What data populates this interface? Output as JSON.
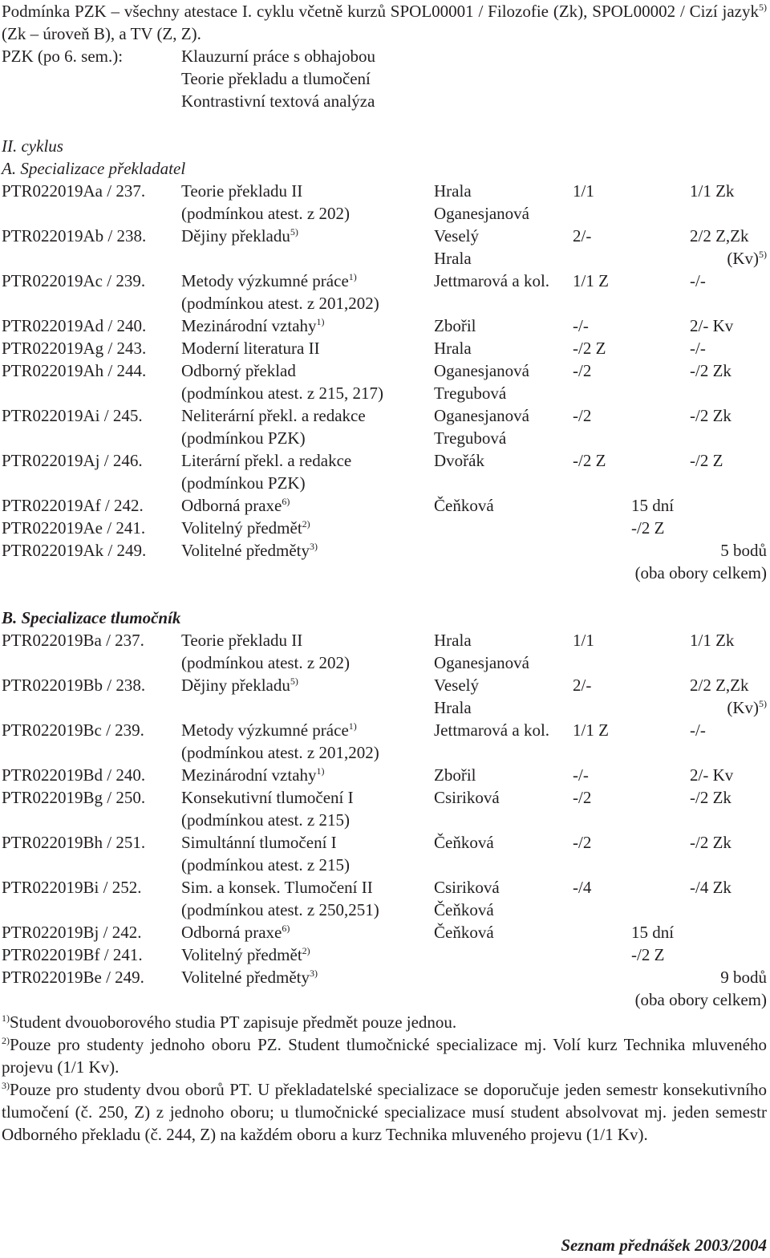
{
  "intro": {
    "text": "Podmínka PZK – všechny atestace I. cyklu včetně kurzů SPOL00001 / Filozofie (Zk), SPOL00002 / Cizí jazyk",
    "sup": "5)",
    "text_after": " (Zk – úroveň B), a TV (Z, Z)."
  },
  "pzk": {
    "label": "PZK (po 6. sem.):",
    "items": [
      "Klauzurní práce s obhajobou",
      "Teorie překladu a tlumočení",
      "Kontrastivní textová analýza"
    ]
  },
  "cycle": "II. cyklus",
  "sections": [
    {
      "title": "A. Specializace překladatel",
      "rows": [
        {
          "code": "PTR022019Aa / 237.",
          "subject": [
            "Teorie překladu II",
            "(podmínkou atest. z 202)"
          ],
          "teachers": [
            "Hrala",
            "Oganesjanová"
          ],
          "hours": "1/1",
          "credit": "1/1 Zk"
        },
        {
          "code": "PTR022019Ab / 238.",
          "subject": [
            "Dějiny překladu"
          ],
          "sup": "5)",
          "teachers": [
            "Veselý",
            "Hrala"
          ],
          "hours": "2/-",
          "credit": "2/2 Z,Zk",
          "credit_note": "(Kv)",
          "credit_sup": "5)"
        },
        {
          "code": "PTR022019Ac / 239.",
          "subject": [
            "Metody výzkumné práce",
            "(podmínkou atest. z 201,202)"
          ],
          "sup": "1)",
          "teachers": [
            "Jettmarová a kol."
          ],
          "hours": "1/1 Z",
          "credit": "-/-"
        },
        {
          "code": "PTR022019Ad / 240.",
          "subject": [
            "Mezinárodní vztahy"
          ],
          "sup": "1)",
          "teachers": [
            "Zbořil"
          ],
          "hours": "-/-",
          "credit": "2/- Kv"
        },
        {
          "code": "PTR022019Ag / 243.",
          "subject": [
            "Moderní literatura II"
          ],
          "teachers": [
            "Hrala"
          ],
          "hours": "-/2 Z",
          "credit": "-/-"
        },
        {
          "code": "PTR022019Ah / 244.",
          "subject": [
            "Odborný překlad",
            "(podmínkou atest. z 215, 217)"
          ],
          "teachers": [
            "Oganesjanová",
            "Tregubová"
          ],
          "hours": "-/2",
          "credit": "-/2 Zk"
        },
        {
          "code": "PTR022019Ai / 245.",
          "subject": [
            "Neliterární překl. a redakce",
            "(podmínkou PZK)"
          ],
          "teachers": [
            "Oganesjanová",
            "Tregubová"
          ],
          "hours": "-/2",
          "credit": "-/2 Zk"
        },
        {
          "code": "PTR022019Aj / 246.",
          "subject": [
            "Literární překl. a redakce",
            "(podmínkou PZK)"
          ],
          "teachers": [
            "Dvořák"
          ],
          "hours": "-/2 Z",
          "credit": "-/2 Z"
        },
        {
          "code": "PTR022019Af / 242.",
          "subject": [
            "Odborná praxe"
          ],
          "sup": "6)",
          "teachers": [
            "Čeňková"
          ],
          "mid": "15 dní"
        },
        {
          "code": "PTR022019Ae / 241.",
          "subject": [
            "Volitelný předmět"
          ],
          "sup": "2)",
          "mid": "-/2 Z"
        },
        {
          "code": "PTR022019Ak / 249.",
          "subject": [
            "Volitelné předměty"
          ],
          "sup": "3)",
          "total": [
            "5 bodů",
            "(oba obory celkem)"
          ]
        }
      ]
    },
    {
      "title": "B. Specializace tlumočník",
      "rows": [
        {
          "code": "PTR022019Ba / 237.",
          "subject": [
            "Teorie překladu II",
            "(podmínkou atest. z 202)"
          ],
          "teachers": [
            "Hrala",
            "Oganesjanová"
          ],
          "hours": "1/1",
          "credit": "1/1 Zk"
        },
        {
          "code": "PTR022019Bb / 238.",
          "subject": [
            "Dějiny překladu"
          ],
          "sup": "5)",
          "teachers": [
            "Veselý",
            "Hrala"
          ],
          "hours": "2/-",
          "credit": "2/2 Z,Zk",
          "credit_note": "(Kv)",
          "credit_sup": "5)"
        },
        {
          "code": "PTR022019Bc / 239.",
          "subject": [
            "Metody výzkumné práce",
            "(podmínkou atest. z 201,202)"
          ],
          "sup": "1)",
          "teachers": [
            "Jettmarová a kol."
          ],
          "hours": "1/1 Z",
          "credit": "-/-"
        },
        {
          "code": "PTR022019Bd / 240.",
          "subject": [
            "Mezinárodní vztahy"
          ],
          "sup": "1)",
          "teachers": [
            "Zbořil"
          ],
          "hours": "-/-",
          "credit": "2/- Kv"
        },
        {
          "code": "PTR022019Bg / 250.",
          "subject": [
            "Konsekutivní tlumočení I",
            "(podmínkou atest. z 215)"
          ],
          "teachers": [
            "Csiriková"
          ],
          "hours": "-/2",
          "credit": "-/2 Zk"
        },
        {
          "code": "PTR022019Bh / 251.",
          "subject": [
            "Simultánní tlumočení I",
            "(podmínkou atest. z 215)"
          ],
          "teachers": [
            "Čeňková"
          ],
          "hours": "-/2",
          "credit": "-/2 Zk"
        },
        {
          "code": "PTR022019Bi / 252.",
          "subject": [
            "Sim. a konsek. Tlumočení II",
            "(podmínkou atest. z 250,251)"
          ],
          "teachers": [
            "Csiriková",
            "Čeňková"
          ],
          "hours": "-/4",
          "credit": "-/4 Zk"
        },
        {
          "code": "PTR022019Bj / 242.",
          "subject": [
            "Odborná praxe"
          ],
          "sup": "6)",
          "teachers": [
            "Čeňková"
          ],
          "mid": "15 dní"
        },
        {
          "code": "PTR022019Bf / 241.",
          "subject": [
            "Volitelný předmět"
          ],
          "sup": "2)",
          "mid": "-/2 Z"
        },
        {
          "code": "PTR022019Be / 249.",
          "subject": [
            "Volitelné předměty"
          ],
          "sup": "3)",
          "total": [
            "9 bodů",
            "(oba obory celkem)"
          ]
        }
      ]
    }
  ],
  "footnotes": [
    {
      "mark": "1)",
      "text": "Student dvouoborového studia PT zapisuje předmět pouze jednou."
    },
    {
      "mark": "2)",
      "text": "Pouze pro studenty jednoho oboru PZ. Student tlumočnické specializace mj. Volí kurz Technika mluveného projevu (1/1 Kv)."
    },
    {
      "mark": "3)",
      "text": "Pouze pro studenty dvou oborů PT. U překladatelské specializace se doporučuje jeden semestr konsekutivního tlumočení (č. 250, Z) z jednoho oboru; u tlumočnické specializace musí student absolvovat mj. jeden semestr Odborného překladu (č. 244, Z) na každém oboru a kurz Technika mluveného projevu (1/1 Kv)."
    }
  ],
  "footer": "Seznam přednášek 2003/2004"
}
